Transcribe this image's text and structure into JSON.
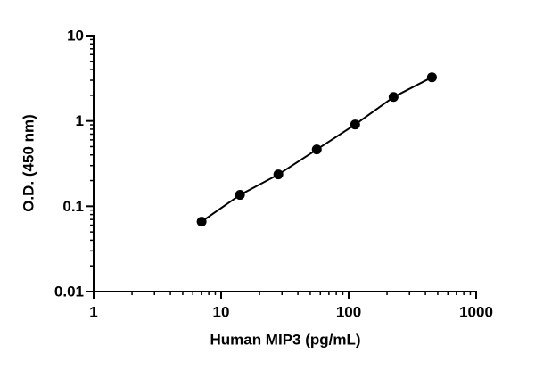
{
  "chart_data": {
    "type": "scatter",
    "title": null,
    "x_label": "Human MIP3 (pg/mL)",
    "y_label": "O.D. (450 nm)",
    "series": [
      {
        "color": "#000000",
        "x": [
          7.03,
          14.06,
          28.1,
          56.25,
          112.5,
          225,
          450
        ],
        "values": [
          0.066,
          0.136,
          0.236,
          0.463,
          0.908,
          1.91,
          3.25
        ]
      }
    ],
    "fit_line": true,
    "xscale": "log",
    "yscale": "log",
    "xlim": [
      1,
      1000
    ],
    "ylim": [
      0.01,
      10
    ],
    "xticks": [
      1,
      10,
      100,
      1000
    ],
    "yticks": [
      0.01,
      0.1,
      1,
      10
    ],
    "xminorticks": [
      2,
      3,
      4,
      5,
      6,
      7,
      8,
      9,
      20,
      30,
      40,
      50,
      60,
      70,
      80,
      90,
      200,
      300,
      400,
      500,
      600,
      700,
      800,
      900
    ],
    "yminorticks": [
      0.02,
      0.03,
      0.04,
      0.05,
      0.06,
      0.07,
      0.08,
      0.09,
      0.2,
      0.3,
      0.4,
      0.5,
      0.6,
      0.7,
      0.8,
      0.9,
      2,
      3,
      4,
      5,
      6,
      7,
      8,
      9
    ]
  }
}
